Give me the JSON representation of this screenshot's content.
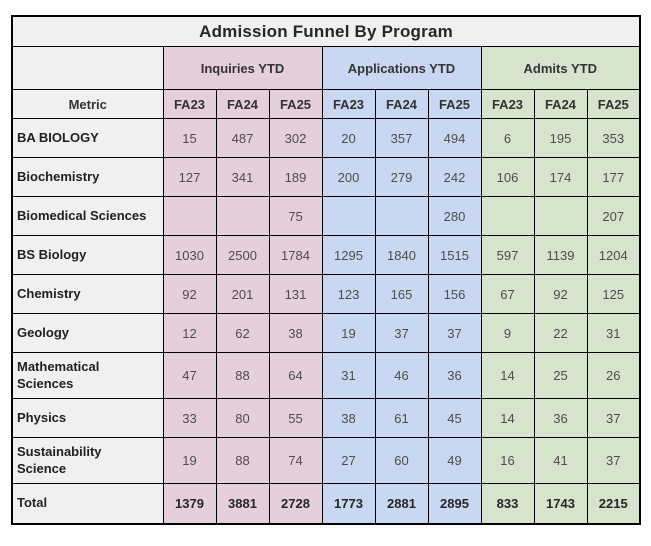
{
  "title": "Admission Funnel By Program",
  "table": {
    "metric_header": "Metric",
    "groups": [
      {
        "label": "Inquiries YTD"
      },
      {
        "label": "Applications YTD"
      },
      {
        "label": "Admits YTD"
      }
    ],
    "term_headers": [
      "FA23",
      "FA24",
      "FA25",
      "FA23",
      "FA24",
      "FA25",
      "FA23",
      "FA24",
      "FA25"
    ],
    "rows": [
      {
        "metric": "BA BIOLOGY",
        "values": [
          "15",
          "487",
          "302",
          "20",
          "357",
          "494",
          "6",
          "195",
          "353"
        ]
      },
      {
        "metric": "Biochemistry",
        "values": [
          "127",
          "341",
          "189",
          "200",
          "279",
          "242",
          "106",
          "174",
          "177"
        ]
      },
      {
        "metric": "Biomedical Sciences",
        "values": [
          "",
          "",
          "75",
          "",
          "",
          "280",
          "",
          "",
          "207"
        ]
      },
      {
        "metric": "BS Biology",
        "values": [
          "1030",
          "2500",
          "1784",
          "1295",
          "1840",
          "1515",
          "597",
          "1139",
          "1204"
        ]
      },
      {
        "metric": "Chemistry",
        "values": [
          "92",
          "201",
          "131",
          "123",
          "165",
          "156",
          "67",
          "92",
          "125"
        ]
      },
      {
        "metric": "Geology",
        "values": [
          "12",
          "62",
          "38",
          "19",
          "37",
          "37",
          "9",
          "22",
          "31"
        ]
      },
      {
        "metric": "Mathematical\nSciences",
        "values": [
          "47",
          "88",
          "64",
          "31",
          "46",
          "36",
          "14",
          "25",
          "26"
        ]
      },
      {
        "metric": "Physics",
        "values": [
          "33",
          "80",
          "55",
          "38",
          "61",
          "45",
          "14",
          "36",
          "37"
        ]
      },
      {
        "metric": "Sustainability\nScience",
        "values": [
          "19",
          "88",
          "74",
          "27",
          "60",
          "49",
          "16",
          "41",
          "37"
        ]
      }
    ],
    "total": {
      "metric": "Total",
      "values": [
        "1379",
        "3881",
        "2728",
        "1773",
        "2881",
        "2895",
        "833",
        "1743",
        "2215"
      ]
    }
  },
  "colors": {
    "inquiries_fill": "#e5cfda",
    "applications_fill": "#c9d7f2",
    "admits_fill": "#d6e3cd",
    "header_gray": "#f0f0f0",
    "border": "#000000"
  },
  "chart_data": {
    "type": "table",
    "title": "Admission Funnel By Program",
    "column_groups": [
      "Inquiries YTD",
      "Applications YTD",
      "Admits YTD"
    ],
    "columns": [
      "Metric",
      "Inquiries FA23",
      "Inquiries FA24",
      "Inquiries FA25",
      "Applications FA23",
      "Applications FA24",
      "Applications FA25",
      "Admits FA23",
      "Admits FA24",
      "Admits FA25"
    ],
    "rows": [
      [
        "BA BIOLOGY",
        15,
        487,
        302,
        20,
        357,
        494,
        6,
        195,
        353
      ],
      [
        "Biochemistry",
        127,
        341,
        189,
        200,
        279,
        242,
        106,
        174,
        177
      ],
      [
        "Biomedical Sciences",
        null,
        null,
        75,
        null,
        null,
        280,
        null,
        null,
        207
      ],
      [
        "BS Biology",
        1030,
        2500,
        1784,
        1295,
        1840,
        1515,
        597,
        1139,
        1204
      ],
      [
        "Chemistry",
        92,
        201,
        131,
        123,
        165,
        156,
        67,
        92,
        125
      ],
      [
        "Geology",
        12,
        62,
        38,
        19,
        37,
        37,
        9,
        22,
        31
      ],
      [
        "Mathematical Sciences",
        47,
        88,
        64,
        31,
        46,
        36,
        14,
        25,
        26
      ],
      [
        "Physics",
        33,
        80,
        55,
        38,
        61,
        45,
        14,
        36,
        37
      ],
      [
        "Sustainability Science",
        19,
        88,
        74,
        27,
        60,
        49,
        16,
        41,
        37
      ],
      [
        "Total",
        1379,
        3881,
        2728,
        1773,
        2881,
        2895,
        833,
        1743,
        2215
      ]
    ]
  }
}
